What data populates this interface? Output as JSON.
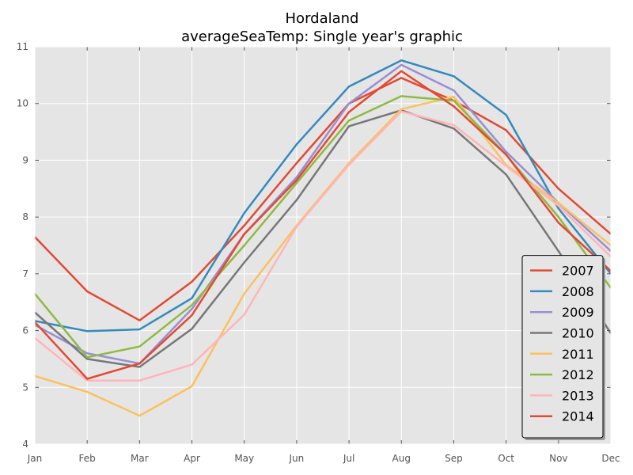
{
  "chart_data": {
    "type": "line",
    "title": "Hordaland",
    "subtitle": "averageSeaTemp: Single year's graphic",
    "xlabel": "",
    "ylabel": "",
    "categories": [
      "Jan",
      "Feb",
      "Mar",
      "Apr",
      "May",
      "Jun",
      "Jul",
      "Aug",
      "Sep",
      "Oct",
      "Nov",
      "Dec"
    ],
    "ylim": [
      4,
      11
    ],
    "yticks": [
      "4",
      "5",
      "6",
      "7",
      "8",
      "9",
      "10",
      "11"
    ],
    "grid": true,
    "legend_position": "lower-right",
    "series": [
      {
        "name": "2007",
        "color": "#E24A33",
        "values": [
          7.65,
          6.69,
          6.18,
          6.86,
          7.85,
          8.95,
          10.0,
          10.45,
          10.05,
          9.53,
          8.5,
          7.7
        ]
      },
      {
        "name": "2008",
        "color": "#348ABD",
        "values": [
          6.17,
          5.99,
          6.02,
          6.57,
          8.07,
          9.28,
          10.3,
          10.76,
          10.48,
          9.8,
          8.15,
          7.0
        ]
      },
      {
        "name": "2009",
        "color": "#988ED5",
        "values": [
          6.1,
          5.6,
          5.42,
          6.38,
          7.7,
          8.7,
          10.0,
          10.68,
          10.23,
          9.15,
          8.25,
          7.4
        ]
      },
      {
        "name": "2010",
        "color": "#777777",
        "values": [
          6.32,
          5.5,
          5.36,
          6.03,
          7.2,
          8.3,
          9.6,
          9.88,
          9.56,
          8.75,
          7.4,
          5.95
        ]
      },
      {
        "name": "2011",
        "color": "#FBC15E",
        "values": [
          5.2,
          4.92,
          4.5,
          5.02,
          6.65,
          7.85,
          8.95,
          9.9,
          10.12,
          8.92,
          8.25,
          7.5
        ]
      },
      {
        "name": "2012",
        "color": "#8EBA42",
        "values": [
          6.65,
          5.53,
          5.72,
          6.45,
          7.5,
          8.6,
          9.7,
          10.13,
          10.05,
          9.1,
          8.0,
          6.75
        ]
      },
      {
        "name": "2013",
        "color": "#FFB5B8",
        "values": [
          5.87,
          5.12,
          5.12,
          5.4,
          6.28,
          7.83,
          8.92,
          9.86,
          9.62,
          8.9,
          8.2,
          7.3
        ]
      },
      {
        "name": "2014",
        "color": "#E24A33",
        "values": [
          6.15,
          5.15,
          5.42,
          6.27,
          7.7,
          8.65,
          9.85,
          10.57,
          9.95,
          9.1,
          7.9,
          7.05
        ]
      }
    ]
  }
}
